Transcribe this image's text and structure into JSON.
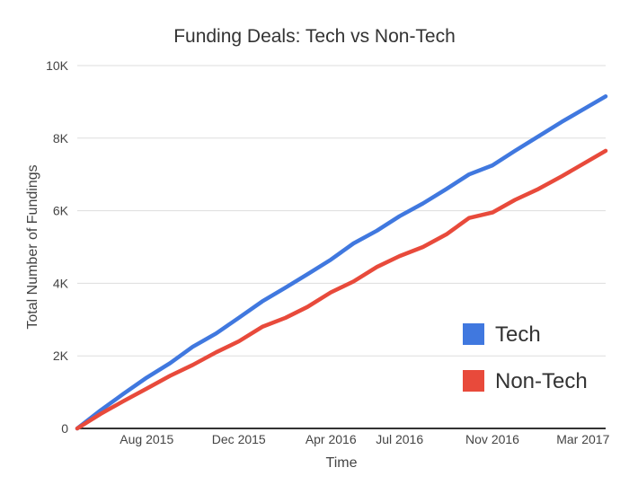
{
  "chart_data": {
    "type": "line",
    "title": "Funding Deals: Tech vs Non-Tech",
    "xlabel": "Time",
    "ylabel": "Total Number of Fundings",
    "x_ticks": [
      "Aug 2015",
      "Dec 2015",
      "Apr 2016",
      "Jul 2016",
      "Nov 2016",
      "Mar 2017"
    ],
    "y_ticks": [
      "0",
      "2K",
      "4K",
      "6K",
      "8K",
      "10K"
    ],
    "xlim": [
      "2015-05-01",
      "2017-03-31"
    ],
    "ylim": [
      0,
      10000
    ],
    "grid": true,
    "legend": "bottom-right",
    "x": [
      "2015-05-01",
      "2015-06-01",
      "2015-07-01",
      "2015-08-01",
      "2015-09-01",
      "2015-10-01",
      "2015-11-01",
      "2015-12-01",
      "2016-01-01",
      "2016-02-01",
      "2016-03-01",
      "2016-04-01",
      "2016-05-01",
      "2016-06-01",
      "2016-07-01",
      "2016-08-01",
      "2016-09-01",
      "2016-10-01",
      "2016-11-01",
      "2016-12-01",
      "2017-01-01",
      "2017-02-01",
      "2017-03-31"
    ],
    "series": [
      {
        "name": "Tech",
        "color": "#4078df",
        "values": [
          0,
          500,
          950,
          1400,
          1800,
          2250,
          2620,
          3050,
          3500,
          3880,
          4250,
          4650,
          5100,
          5450,
          5850,
          6200,
          6600,
          7000,
          7250,
          7650,
          8050,
          8450,
          9150
        ]
      },
      {
        "name": "Non-Tech",
        "color": "#e84a3b",
        "values": [
          0,
          400,
          750,
          1100,
          1450,
          1750,
          2100,
          2400,
          2800,
          3050,
          3350,
          3750,
          4050,
          4450,
          4750,
          5000,
          5350,
          5800,
          5950,
          6300,
          6600,
          6950,
          7650
        ]
      }
    ]
  }
}
